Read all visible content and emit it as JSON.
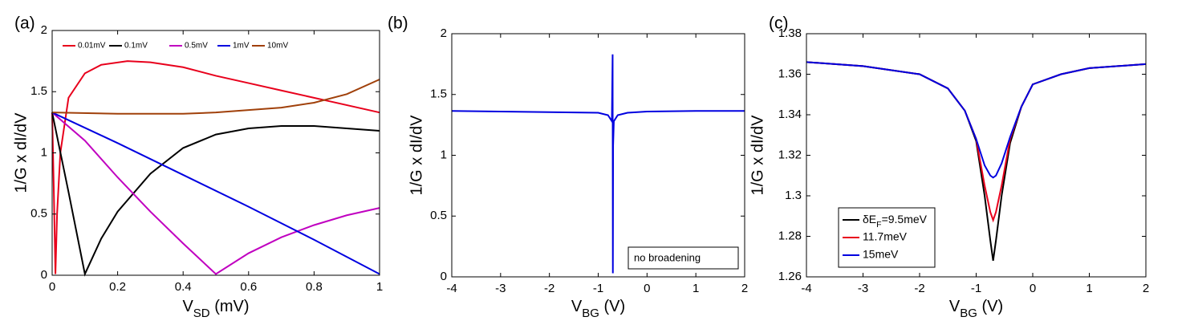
{
  "chart_data": [
    {
      "type": "line",
      "label": "(a)",
      "xlabel": [
        "V",
        "SD",
        " (mV)"
      ],
      "ylabel": "1/G x dI/dV",
      "xlim": [
        0,
        1
      ],
      "ylim": [
        0,
        2
      ],
      "xticks": [
        0,
        0.2,
        0.4,
        0.6,
        0.8,
        1
      ],
      "yticks": [
        0,
        0.5,
        1,
        1.5,
        2
      ],
      "legend": "top",
      "series": [
        {
          "name": "0.01mV",
          "color": "#e8001c",
          "x": [
            0,
            0.005,
            0.01,
            0.015,
            0.025,
            0.05,
            0.1,
            0.15,
            0.23,
            0.3,
            0.4,
            0.5,
            0.6,
            0.7,
            0.85,
            1
          ],
          "values": [
            1.33,
            0.7,
            0.01,
            0.5,
            1.0,
            1.45,
            1.65,
            1.72,
            1.75,
            1.74,
            1.7,
            1.63,
            1.57,
            1.51,
            1.42,
            1.33
          ]
        },
        {
          "name": "0.1mV",
          "color": "#000000",
          "x": [
            0,
            0.05,
            0.1,
            0.15,
            0.2,
            0.3,
            0.4,
            0.5,
            0.6,
            0.7,
            0.8,
            0.9,
            1
          ],
          "values": [
            1.33,
            0.68,
            0.01,
            0.3,
            0.52,
            0.83,
            1.04,
            1.15,
            1.2,
            1.22,
            1.22,
            1.2,
            1.18
          ]
        },
        {
          "name": "0.5mV",
          "color": "#c000c0",
          "x": [
            0,
            0.1,
            0.2,
            0.3,
            0.4,
            0.5,
            0.6,
            0.7,
            0.8,
            0.9,
            1
          ],
          "values": [
            1.33,
            1.1,
            0.8,
            0.52,
            0.26,
            0.01,
            0.18,
            0.31,
            0.41,
            0.49,
            0.55
          ]
        },
        {
          "name": "1mV",
          "color": "#0000e0",
          "x": [
            0,
            0.2,
            0.4,
            0.6,
            0.8,
            1
          ],
          "values": [
            1.33,
            1.08,
            0.82,
            0.56,
            0.29,
            0.01
          ]
        },
        {
          "name": "10mV",
          "color": "#a0400a",
          "x": [
            0,
            0.2,
            0.4,
            0.5,
            0.6,
            0.7,
            0.8,
            0.9,
            1
          ],
          "values": [
            1.33,
            1.32,
            1.32,
            1.33,
            1.35,
            1.37,
            1.41,
            1.48,
            1.6
          ]
        }
      ]
    },
    {
      "type": "line",
      "label": "(b)",
      "xlabel": [
        "V",
        "BG",
        " (V)"
      ],
      "ylabel": "1/G x dI/dV",
      "xlim": [
        -4,
        2
      ],
      "ylim": [
        0,
        2
      ],
      "xticks": [
        -4,
        -3,
        -2,
        -1,
        0,
        1,
        2
      ],
      "yticks": [
        0,
        0.5,
        1,
        1.5,
        2
      ],
      "annotation": "no broadening",
      "series": [
        {
          "name": "no broadening",
          "color": "#0000e0",
          "x": [
            -4,
            -3,
            -2,
            -1,
            -0.8,
            -0.72,
            -0.705,
            -0.7,
            -0.695,
            -0.68,
            -0.6,
            -0.4,
            0,
            1,
            2
          ],
          "values": [
            1.365,
            1.36,
            1.355,
            1.35,
            1.33,
            1.28,
            1.83,
            0.03,
            1.08,
            1.28,
            1.33,
            1.35,
            1.36,
            1.365,
            1.365
          ]
        }
      ]
    },
    {
      "type": "line",
      "label": "(c)",
      "xlabel": [
        "V",
        "BG",
        " (V)"
      ],
      "ylabel": "1/G x dI/dV",
      "xlim": [
        -4,
        2
      ],
      "ylim": [
        1.26,
        1.38
      ],
      "xticks": [
        -4,
        -3,
        -2,
        -1,
        0,
        1,
        2
      ],
      "yticks": [
        1.26,
        1.28,
        1.3,
        1.32,
        1.34,
        1.36,
        1.38
      ],
      "legend": "lower left",
      "series": [
        {
          "name": [
            "δE",
            "F",
            "=9.5meV"
          ],
          "color": "#000000",
          "x": [
            -4,
            -3,
            -2,
            -1.5,
            -1.2,
            -1,
            -0.85,
            -0.75,
            -0.7,
            -0.65,
            -0.55,
            -0.4,
            -0.2,
            0,
            0.5,
            1,
            2
          ],
          "values": [
            1.366,
            1.364,
            1.36,
            1.353,
            1.342,
            1.327,
            1.3,
            1.278,
            1.268,
            1.278,
            1.3,
            1.326,
            1.344,
            1.355,
            1.36,
            1.363,
            1.365
          ]
        },
        {
          "name": "11.7meV",
          "color": "#e8001c",
          "x": [
            -4,
            -3,
            -2,
            -1.5,
            -1.2,
            -1,
            -0.85,
            -0.75,
            -0.7,
            -0.65,
            -0.55,
            -0.4,
            -0.2,
            0,
            0.5,
            1,
            2
          ],
          "values": [
            1.366,
            1.364,
            1.36,
            1.353,
            1.342,
            1.328,
            1.305,
            1.292,
            1.288,
            1.292,
            1.305,
            1.328,
            1.344,
            1.355,
            1.36,
            1.363,
            1.365
          ]
        },
        {
          "name": "15meV",
          "color": "#0000e0",
          "x": [
            -4,
            -3,
            -2,
            -1.5,
            -1.2,
            -1,
            -0.85,
            -0.75,
            -0.7,
            -0.65,
            -0.55,
            -0.4,
            -0.2,
            0,
            0.5,
            1,
            2
          ],
          "values": [
            1.366,
            1.364,
            1.36,
            1.353,
            1.342,
            1.328,
            1.315,
            1.31,
            1.309,
            1.31,
            1.316,
            1.329,
            1.344,
            1.355,
            1.36,
            1.363,
            1.365
          ]
        }
      ]
    }
  ]
}
